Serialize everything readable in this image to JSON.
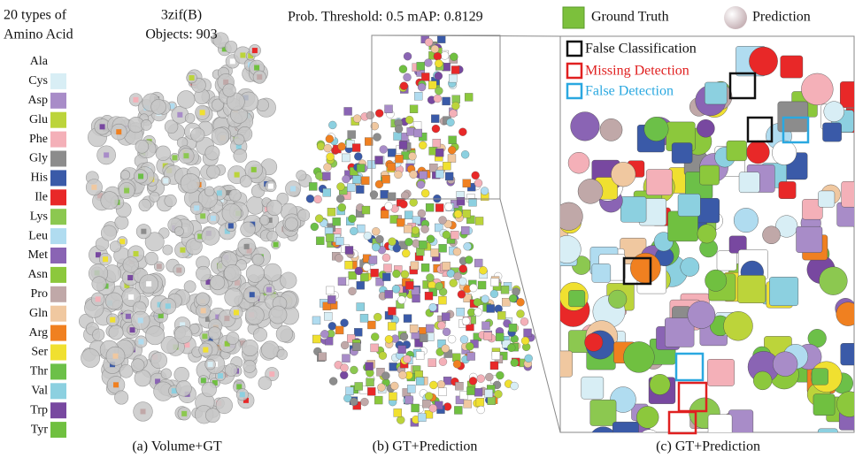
{
  "legend": {
    "title_line1": "20 types of",
    "title_line2": "Amino Acid",
    "amino_acids": [
      {
        "name": "Ala",
        "color": "#ffffff"
      },
      {
        "name": "Cys",
        "color": "#d8eef5"
      },
      {
        "name": "Asp",
        "color": "#a88cc8"
      },
      {
        "name": "Glu",
        "color": "#bcd43a"
      },
      {
        "name": "Phe",
        "color": "#f4b0b8"
      },
      {
        "name": "Gly",
        "color": "#8c8c8c"
      },
      {
        "name": "His",
        "color": "#3a5aa8"
      },
      {
        "name": "Ile",
        "color": "#e82828"
      },
      {
        "name": "Lys",
        "color": "#8cc850"
      },
      {
        "name": "Leu",
        "color": "#b0dcf0"
      },
      {
        "name": "Met",
        "color": "#8a64b4"
      },
      {
        "name": "Asn",
        "color": "#8cc83c"
      },
      {
        "name": "Pro",
        "color": "#c0a8a8"
      },
      {
        "name": "Gln",
        "color": "#f0c8a0"
      },
      {
        "name": "Arg",
        "color": "#f08020"
      },
      {
        "name": "Ser",
        "color": "#f0e030"
      },
      {
        "name": "Thr",
        "color": "#6cc048"
      },
      {
        "name": "Val",
        "color": "#8cd0e0"
      },
      {
        "name": "Trp",
        "color": "#7848a0"
      },
      {
        "name": "Tyr",
        "color": "#70c040"
      }
    ]
  },
  "header": {
    "protein": "3zif(B)",
    "objects": "Objects: 903",
    "metrics": "Prob. Threshold: 0.5 mAP: 0.8129",
    "ground_truth": "Ground Truth",
    "prediction": "Prediction"
  },
  "annotations": {
    "false_classification": "False Classification",
    "missing_detection": "Missing Detection",
    "false_detection": "False Detection"
  },
  "captions": {
    "a": "(a) Volume+GT",
    "b": "(b) GT+Prediction",
    "c": "(c) GT+Prediction"
  }
}
